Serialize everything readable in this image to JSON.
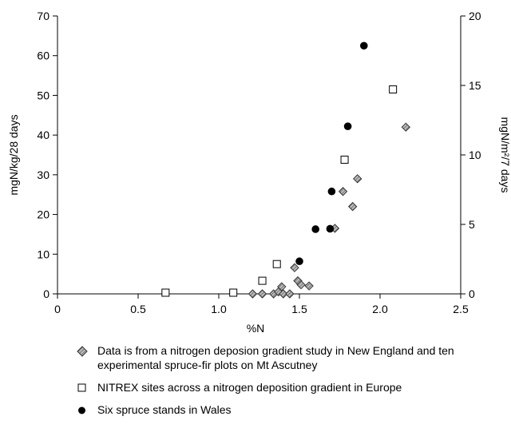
{
  "chart_data": {
    "type": "scatter",
    "title": "",
    "xlabel": "%N",
    "ylabel": "mgN/kg/28 days",
    "ylabel_right": "mgN/m²/7 days",
    "xlim": [
      0,
      2.5
    ],
    "ylim": [
      0,
      70
    ],
    "ylim_right": [
      0,
      20
    ],
    "x_ticks": [
      "0",
      "0.5",
      "1.0",
      "1.5",
      "2.0",
      "2.5"
    ],
    "y_ticks": [
      "0",
      "10",
      "20",
      "30",
      "40",
      "50",
      "60",
      "70"
    ],
    "y_ticks_right": [
      "0",
      "5",
      "10",
      "15",
      "20"
    ],
    "grid": false,
    "legend_position": "bottom",
    "series": [
      {
        "name": "Data is from a nitrogen deposion gradient study in New England and ten experimental spruce-fir plots on Mt Ascutney",
        "marker": "diamond-hatched",
        "axis": "left",
        "points": [
          [
            1.21,
            0
          ],
          [
            1.27,
            0
          ],
          [
            1.34,
            0
          ],
          [
            1.37,
            0.5
          ],
          [
            1.39,
            1.8
          ],
          [
            1.4,
            0
          ],
          [
            1.44,
            0
          ],
          [
            1.47,
            6.6
          ],
          [
            1.49,
            3.3
          ],
          [
            1.51,
            2.3
          ],
          [
            1.56,
            2
          ],
          [
            1.72,
            16.5
          ],
          [
            1.77,
            25.8
          ],
          [
            1.83,
            22
          ],
          [
            1.86,
            29
          ],
          [
            2.16,
            42
          ]
        ]
      },
      {
        "name": "NITREX sites across a nitrogen deposition gradient in Europe",
        "marker": "open-square",
        "axis": "left",
        "points": [
          [
            0.67,
            0.3
          ],
          [
            1.09,
            0.3
          ],
          [
            1.27,
            3.3
          ],
          [
            1.36,
            7.5
          ],
          [
            1.78,
            33.8
          ],
          [
            2.08,
            51.5
          ]
        ]
      },
      {
        "name": "Six spruce stands in Wales",
        "marker": "filled-circle",
        "axis": "left",
        "points": [
          [
            1.5,
            8.2
          ],
          [
            1.6,
            16.3
          ],
          [
            1.69,
            16.4
          ],
          [
            1.7,
            25.8
          ],
          [
            1.8,
            42.2
          ],
          [
            1.9,
            62.5
          ]
        ]
      }
    ]
  }
}
